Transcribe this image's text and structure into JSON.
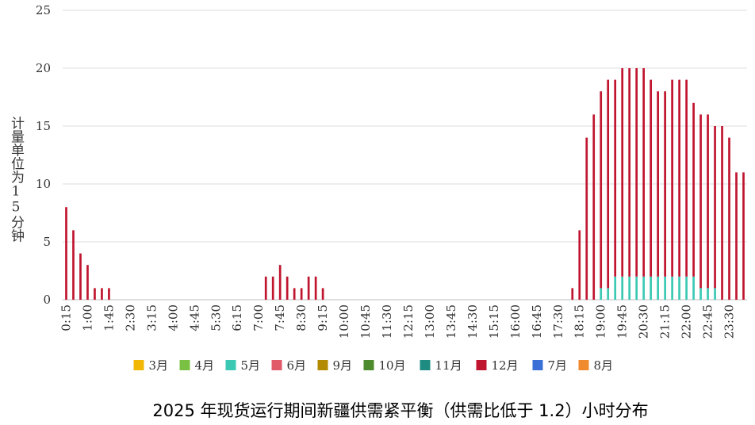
{
  "chart_data": {
    "type": "bar",
    "stacked": true,
    "title": "2025 年现货运行期间新疆供需紧平衡（供需比低于 1.2）小时分布",
    "ylabel": "计量单位为15分钟",
    "ylim": [
      0,
      25
    ],
    "yticks": [
      0,
      5,
      10,
      15,
      20,
      25
    ],
    "grid": "horizontal",
    "legend_position": "bottom",
    "x": [
      "0:15",
      "0:30",
      "0:45",
      "1:00",
      "1:15",
      "1:30",
      "1:45",
      "2:00",
      "2:15",
      "2:30",
      "2:45",
      "3:00",
      "3:15",
      "3:30",
      "3:45",
      "4:00",
      "4:15",
      "4:30",
      "4:45",
      "5:00",
      "5:15",
      "5:30",
      "5:45",
      "6:00",
      "6:15",
      "6:30",
      "6:45",
      "7:00",
      "7:15",
      "7:30",
      "7:45",
      "8:00",
      "8:15",
      "8:30",
      "8:45",
      "9:00",
      "9:15",
      "9:30",
      "9:45",
      "10:00",
      "10:15",
      "10:30",
      "10:45",
      "11:00",
      "11:15",
      "11:30",
      "11:45",
      "12:00",
      "12:15",
      "12:30",
      "12:45",
      "13:00",
      "13:15",
      "13:30",
      "13:45",
      "14:00",
      "14:15",
      "14:30",
      "14:45",
      "15:00",
      "15:15",
      "15:30",
      "15:45",
      "16:00",
      "16:15",
      "16:30",
      "16:45",
      "17:00",
      "17:15",
      "17:30",
      "17:45",
      "18:00",
      "18:15",
      "18:30",
      "18:45",
      "19:00",
      "19:15",
      "19:30",
      "19:45",
      "20:00",
      "20:15",
      "20:30",
      "20:45",
      "21:00",
      "21:15",
      "21:30",
      "21:45",
      "22:00",
      "22:15",
      "22:30",
      "22:45",
      "23:00",
      "23:15",
      "23:30",
      "23:45",
      "24:00"
    ],
    "x_tick_labels": [
      "0:15",
      "1:00",
      "1:45",
      "2:30",
      "3:15",
      "4:00",
      "4:45",
      "5:30",
      "6:15",
      "7:00",
      "7:45",
      "8:30",
      "9:15",
      "10:00",
      "10:45",
      "11:30",
      "12:15",
      "13:00",
      "13:45",
      "14:30",
      "15:15",
      "16:00",
      "16:45",
      "17:30",
      "18:15",
      "19:00",
      "19:45",
      "20:30",
      "21:15",
      "22:00",
      "22:45",
      "23:30"
    ],
    "series": [
      {
        "name": "3月",
        "color": "#F2B705",
        "values": [
          0,
          0,
          0,
          0,
          0,
          0,
          0,
          0,
          0,
          0,
          0,
          0,
          0,
          0,
          0,
          0,
          0,
          0,
          0,
          0,
          0,
          0,
          0,
          0,
          0,
          0,
          0,
          0,
          0,
          0,
          0,
          0,
          0,
          0,
          0,
          0,
          0,
          0,
          0,
          0,
          0,
          0,
          0,
          0,
          0,
          0,
          0,
          0,
          0,
          0,
          0,
          0,
          0,
          0,
          0,
          0,
          0,
          0,
          0,
          0,
          0,
          0,
          0,
          0,
          0,
          0,
          0,
          0,
          0,
          0,
          0,
          0,
          0,
          0,
          0,
          0,
          0,
          0,
          0,
          0,
          0,
          0,
          0,
          0,
          0,
          0,
          0,
          0,
          0,
          0,
          0,
          0,
          0,
          0,
          0,
          0
        ]
      },
      {
        "name": "4月",
        "color": "#7AC143",
        "values": [
          0,
          0,
          0,
          0,
          0,
          0,
          0,
          0,
          0,
          0,
          0,
          0,
          0,
          0,
          0,
          0,
          0,
          0,
          0,
          0,
          0,
          0,
          0,
          0,
          0,
          0,
          0,
          0,
          0,
          0,
          0,
          0,
          0,
          0,
          0,
          0,
          0,
          0,
          0,
          0,
          0,
          0,
          0,
          0,
          0,
          0,
          0,
          0,
          0,
          0,
          0,
          0,
          0,
          0,
          0,
          0,
          0,
          0,
          0,
          0,
          0,
          0,
          0,
          0,
          0,
          0,
          0,
          0,
          0,
          0,
          0,
          0,
          0,
          0,
          0,
          0,
          0,
          0,
          0,
          0,
          0,
          0,
          0,
          0,
          0,
          0,
          0,
          0,
          0,
          0,
          0,
          0,
          0,
          0,
          0,
          0
        ]
      },
      {
        "name": "5月",
        "color": "#3CC9B4",
        "values": [
          0,
          0,
          0,
          0,
          0,
          0,
          0,
          0,
          0,
          0,
          0,
          0,
          0,
          0,
          0,
          0,
          0,
          0,
          0,
          0,
          0,
          0,
          0,
          0,
          0,
          0,
          0,
          0,
          0,
          0,
          0,
          0,
          0,
          0,
          0,
          0,
          0,
          0,
          0,
          0,
          0,
          0,
          0,
          0,
          0,
          0,
          0,
          0,
          0,
          0,
          0,
          0,
          0,
          0,
          0,
          0,
          0,
          0,
          0,
          0,
          0,
          0,
          0,
          0,
          0,
          0,
          0,
          0,
          0,
          0,
          0,
          0,
          0,
          0,
          0,
          1,
          1,
          2,
          2,
          2,
          2,
          2,
          2,
          2,
          2,
          2,
          2,
          2,
          2,
          1,
          1,
          1,
          0,
          0,
          0,
          0
        ]
      },
      {
        "name": "6月",
        "color": "#E05A6A",
        "values": [
          0,
          0,
          0,
          0,
          0,
          0,
          0,
          0,
          0,
          0,
          0,
          0,
          0,
          0,
          0,
          0,
          0,
          0,
          0,
          0,
          0,
          0,
          0,
          0,
          0,
          0,
          0,
          0,
          0,
          0,
          0,
          0,
          0,
          0,
          0,
          0,
          0,
          0,
          0,
          0,
          0,
          0,
          0,
          0,
          0,
          0,
          0,
          0,
          0,
          0,
          0,
          0,
          0,
          0,
          0,
          0,
          0,
          0,
          0,
          0,
          0,
          0,
          0,
          0,
          0,
          0,
          0,
          0,
          0,
          0,
          0,
          0,
          0,
          0,
          0,
          0,
          0,
          0,
          0,
          0,
          0,
          0,
          0,
          0,
          0,
          0,
          0,
          0,
          0,
          0,
          0,
          0,
          0,
          0,
          0,
          0
        ]
      },
      {
        "name": "9月",
        "color": "#B38B00",
        "values": [
          0,
          0,
          0,
          0,
          0,
          0,
          0,
          0,
          0,
          0,
          0,
          0,
          0,
          0,
          0,
          0,
          0,
          0,
          0,
          0,
          0,
          0,
          0,
          0,
          0,
          0,
          0,
          0,
          0,
          0,
          0,
          0,
          0,
          0,
          0,
          0,
          0,
          0,
          0,
          0,
          0,
          0,
          0,
          0,
          0,
          0,
          0,
          0,
          0,
          0,
          0,
          0,
          0,
          0,
          0,
          0,
          0,
          0,
          0,
          0,
          0,
          0,
          0,
          0,
          0,
          0,
          0,
          0,
          0,
          0,
          0,
          0,
          0,
          0,
          0,
          0,
          0,
          0,
          0,
          0,
          0,
          0,
          0,
          0,
          0,
          0,
          0,
          0,
          0,
          0,
          0,
          0,
          0,
          0,
          0,
          0
        ]
      },
      {
        "name": "10月",
        "color": "#4E8A2E",
        "values": [
          0,
          0,
          0,
          0,
          0,
          0,
          0,
          0,
          0,
          0,
          0,
          0,
          0,
          0,
          0,
          0,
          0,
          0,
          0,
          0,
          0,
          0,
          0,
          0,
          0,
          0,
          0,
          0,
          0,
          0,
          0,
          0,
          0,
          0,
          0,
          0,
          0,
          0,
          0,
          0,
          0,
          0,
          0,
          0,
          0,
          0,
          0,
          0,
          0,
          0,
          0,
          0,
          0,
          0,
          0,
          0,
          0,
          0,
          0,
          0,
          0,
          0,
          0,
          0,
          0,
          0,
          0,
          0,
          0,
          0,
          0,
          0,
          0,
          0,
          0,
          0,
          0,
          0,
          0,
          0,
          0,
          0,
          0,
          0,
          0,
          0,
          0,
          0,
          0,
          0,
          0,
          0,
          0,
          0,
          0,
          0
        ]
      },
      {
        "name": "11月",
        "color": "#1E8C80",
        "values": [
          0,
          0,
          0,
          0,
          0,
          0,
          0,
          0,
          0,
          0,
          0,
          0,
          0,
          0,
          0,
          0,
          0,
          0,
          0,
          0,
          0,
          0,
          0,
          0,
          0,
          0,
          0,
          0,
          0,
          0,
          0,
          0,
          0,
          0,
          0,
          0,
          0,
          0,
          0,
          0,
          0,
          0,
          0,
          0,
          0,
          0,
          0,
          0,
          0,
          0,
          0,
          0,
          0,
          0,
          0,
          0,
          0,
          0,
          0,
          0,
          0,
          0,
          0,
          0,
          0,
          0,
          0,
          0,
          0,
          0,
          0,
          0,
          0,
          0,
          0,
          0,
          0,
          0,
          0,
          0,
          0,
          0,
          0,
          0,
          0,
          0,
          0,
          0,
          0,
          0,
          0,
          0,
          0,
          0,
          0,
          0
        ]
      },
      {
        "name": "12月",
        "color": "#C0152F",
        "values": [
          8,
          6,
          4,
          3,
          1,
          1,
          1,
          0,
          0,
          0,
          0,
          0,
          0,
          0,
          0,
          0,
          0,
          0,
          0,
          0,
          0,
          0,
          0,
          0,
          0,
          0,
          0,
          0,
          2,
          2,
          3,
          2,
          1,
          1,
          2,
          2,
          1,
          0,
          0,
          0,
          0,
          0,
          0,
          0,
          0,
          0,
          0,
          0,
          0,
          0,
          0,
          0,
          0,
          0,
          0,
          0,
          0,
          0,
          0,
          0,
          0,
          0,
          0,
          0,
          0,
          0,
          0,
          0,
          0,
          0,
          0,
          1,
          6,
          14,
          16,
          17,
          18,
          17,
          18,
          18,
          18,
          18,
          17,
          16,
          16,
          17,
          17,
          17,
          15,
          15,
          15,
          14,
          15,
          14,
          11,
          11
        ]
      },
      {
        "name": "7月",
        "color": "#3A6FD8",
        "values": [
          0,
          0,
          0,
          0,
          0,
          0,
          0,
          0,
          0,
          0,
          0,
          0,
          0,
          0,
          0,
          0,
          0,
          0,
          0,
          0,
          0,
          0,
          0,
          0,
          0,
          0,
          0,
          0,
          0,
          0,
          0,
          0,
          0,
          0,
          0,
          0,
          0,
          0,
          0,
          0,
          0,
          0,
          0,
          0,
          0,
          0,
          0,
          0,
          0,
          0,
          0,
          0,
          0,
          0,
          0,
          0,
          0,
          0,
          0,
          0,
          0,
          0,
          0,
          0,
          0,
          0,
          0,
          0,
          0,
          0,
          0,
          0,
          0,
          0,
          0,
          0,
          0,
          0,
          0,
          0,
          0,
          0,
          0,
          0,
          0,
          0,
          0,
          0,
          0,
          0,
          0,
          0,
          0,
          0,
          0,
          0
        ]
      },
      {
        "name": "8月",
        "color": "#F08A2E",
        "values": [
          0,
          0,
          0,
          0,
          0,
          0,
          0,
          0,
          0,
          0,
          0,
          0,
          0,
          0,
          0,
          0,
          0,
          0,
          0,
          0,
          0,
          0,
          0,
          0,
          0,
          0,
          0,
          0,
          0,
          0,
          0,
          0,
          0,
          0,
          0,
          0,
          0,
          0,
          0,
          0,
          0,
          0,
          0,
          0,
          0,
          0,
          0,
          0,
          0,
          0,
          0,
          0,
          0,
          0,
          0,
          0,
          0,
          0,
          0,
          0,
          0,
          0,
          0,
          0,
          0,
          0,
          0,
          0,
          0,
          0,
          0,
          0,
          0,
          0,
          0,
          0,
          0,
          0,
          0,
          0,
          0,
          0,
          0,
          0,
          0,
          0,
          0,
          0,
          0,
          0,
          0,
          0,
          0,
          0,
          0,
          0
        ]
      }
    ]
  }
}
